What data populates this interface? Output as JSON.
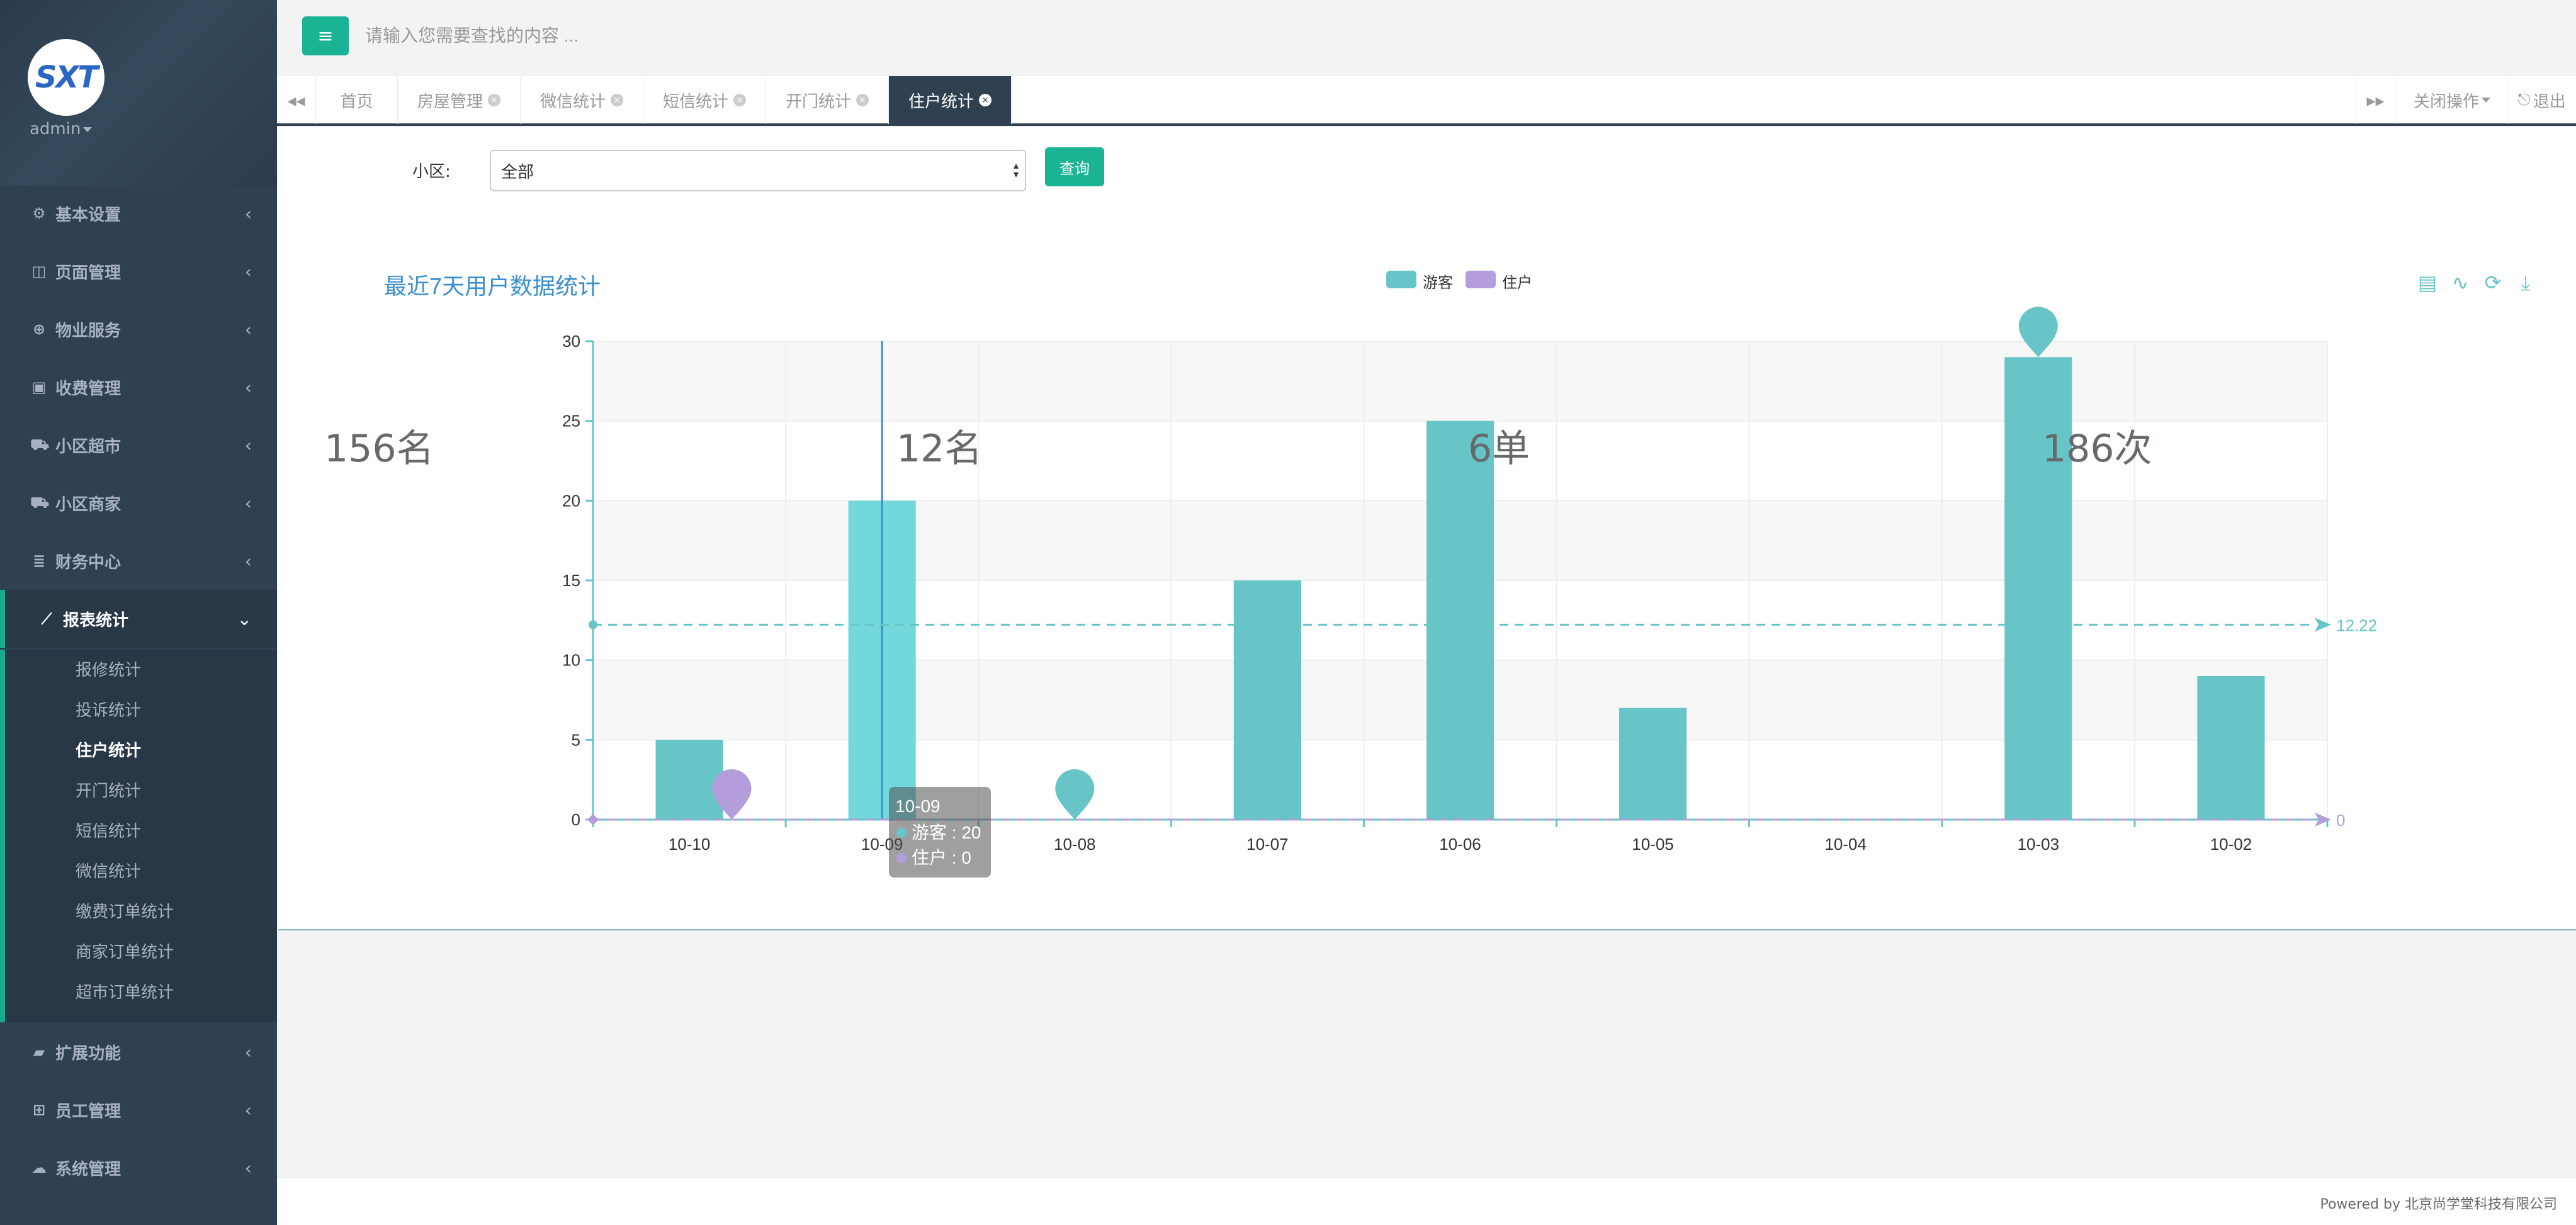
{
  "sidebar": {
    "logo_text": "SXT",
    "user": "admin",
    "menu": [
      {
        "label": "基本设置",
        "icon": "gear-icon",
        "glyph": "⚙"
      },
      {
        "label": "页面管理",
        "icon": "columns-icon",
        "glyph": "◫"
      },
      {
        "label": "物业服务",
        "icon": "globe-icon",
        "glyph": "⊕"
      },
      {
        "label": "收费管理",
        "icon": "money-icon",
        "glyph": "▣"
      },
      {
        "label": "小区超市",
        "icon": "cart-icon",
        "glyph": "⛟"
      },
      {
        "label": "小区商家",
        "icon": "truck-icon",
        "glyph": "⛟"
      },
      {
        "label": "财务中心",
        "icon": "database-icon",
        "glyph": "≣"
      },
      {
        "label": "报表统计",
        "icon": "line-chart-icon",
        "glyph": "⟋"
      },
      {
        "label": "扩展功能",
        "icon": "folder-open-icon",
        "glyph": "▰"
      },
      {
        "label": "员工管理",
        "icon": "sitemap-icon",
        "glyph": "⊞"
      },
      {
        "label": "系统管理",
        "icon": "cloud-icon",
        "glyph": "☁"
      }
    ],
    "submenu": [
      "报修统计",
      "投诉统计",
      "住户统计",
      "开门统计",
      "短信统计",
      "微信统计",
      "缴费订单统计",
      "商家订单统计",
      "超市订单统计"
    ],
    "active_sub": "住户统计"
  },
  "topbar": {
    "search_placeholder": "请输入您需要查找的内容 ..."
  },
  "tabs": {
    "items": [
      "首页",
      "房屋管理",
      "微信统计",
      "短信统计",
      "开门统计",
      "住户统计"
    ],
    "active": "住户统计",
    "close_ops": "关闭操作",
    "logout": "退出"
  },
  "filter": {
    "label": "小区:",
    "value": "全部",
    "button": "查询"
  },
  "chart_data": {
    "type": "bar",
    "title": "最近7天用户数据统计",
    "categories": [
      "10-10",
      "10-09",
      "10-08",
      "10-07",
      "10-06",
      "10-05",
      "10-04",
      "10-03",
      "10-02"
    ],
    "series": [
      {
        "name": "游客",
        "color": "#67c5c7",
        "values": [
          5,
          20,
          0,
          15,
          25,
          7,
          0,
          29,
          9
        ]
      },
      {
        "name": "住户",
        "color": "#b39ddb",
        "values": [
          0,
          0,
          0,
          0,
          0,
          0,
          0,
          0,
          0
        ]
      }
    ],
    "ylim": [
      0,
      30
    ],
    "yticks": [
      0,
      5,
      10,
      15,
      20,
      25,
      30
    ],
    "markline": {
      "visitor_average": "12.22",
      "resident_average": "0"
    },
    "markpoints": [
      {
        "series": "游客",
        "category": "10-03",
        "label": "29"
      },
      {
        "series": "游客",
        "category": "10-08",
        "label": "0"
      },
      {
        "series": "住户",
        "category": "10-10",
        "label": "0"
      }
    ],
    "tooltip": {
      "title": "10-09",
      "lines": [
        "游客 : 20",
        "住户 : 0"
      ]
    },
    "overlay_stats": [
      "156名",
      "12名",
      "6单",
      "186次"
    ],
    "legend_position": "top-center",
    "toolbox": [
      "data-view-icon",
      "line-chart-icon",
      "refresh-icon",
      "download-icon"
    ]
  },
  "footer": {
    "text": "Powered by 北京尚学堂科技有限公司"
  }
}
